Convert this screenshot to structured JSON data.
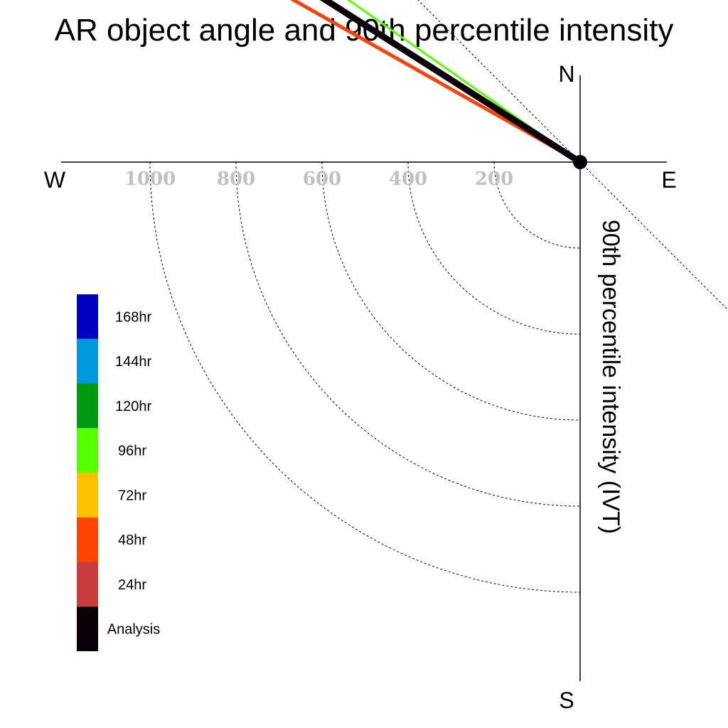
{
  "chart_data": {
    "type": "polar-vector",
    "title": "AR object angle and 90th percentile intensity",
    "ylabel": "90th percentile intensity (IVT)",
    "compass": {
      "north": "N",
      "south": "S",
      "east": "E",
      "west": "W"
    },
    "rlim": [
      0,
      1000
    ],
    "radial_ticks": [
      200,
      400,
      600,
      800,
      1000
    ],
    "radial_tick_labels": [
      "200",
      "400",
      "600",
      "800",
      "1000"
    ],
    "angle_reference_deg": [
      -90,
      -45,
      0,
      45,
      90
    ],
    "series": [
      {
        "name": "24hr",
        "color": "#c83c3c",
        "angle_deg": 29.5,
        "intensity": 1143,
        "line_width": 5
      },
      {
        "name": "48hr",
        "color": "#ff4400",
        "angle_deg": 29.5,
        "intensity": 1082,
        "line_width": 4
      },
      {
        "name": "96hr",
        "color": "#55ff00",
        "angle_deg": 35.0,
        "intensity": 1002,
        "line_width": 3
      },
      {
        "name": "Analysis",
        "color": "#0a0008",
        "angle_deg": 32.5,
        "intensity": 1044,
        "line_width": 9
      }
    ],
    "legend": [
      {
        "label": "168hr",
        "color": "#0000c0"
      },
      {
        "label": "144hr",
        "color": "#0099dd"
      },
      {
        "label": "120hr",
        "color": "#009911"
      },
      {
        "label": "96hr",
        "color": "#55ff00"
      },
      {
        "label": "72hr",
        "color": "#ffc000"
      },
      {
        "label": "48hr",
        "color": "#ff4400"
      },
      {
        "label": "24hr",
        "color": "#cc3c3c"
      },
      {
        "label": "Analysis",
        "color": "#0a0008"
      }
    ]
  }
}
